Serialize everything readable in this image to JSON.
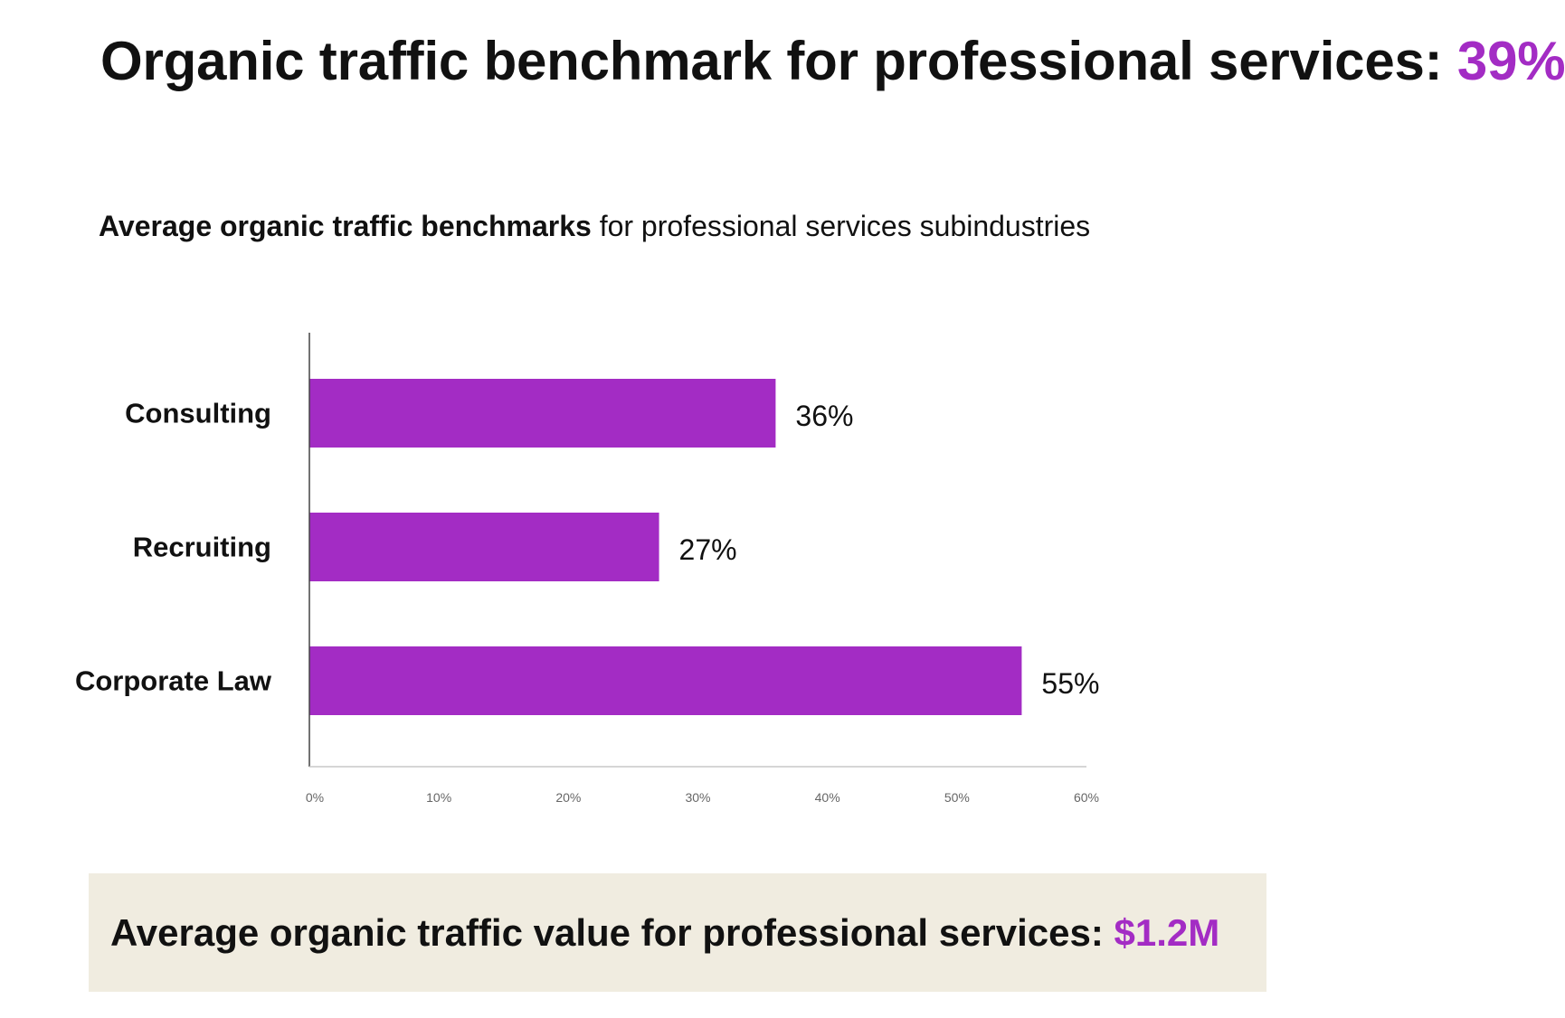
{
  "header": {
    "title_text": "Organic traffic benchmark for professional services: ",
    "title_value": "39%"
  },
  "subtitle": {
    "bold": "Average organic traffic benchmarks",
    "regular": " for professional services subindustries"
  },
  "callout": {
    "text": "Average organic traffic value for professional services: ",
    "value": "$1.2M"
  },
  "colors": {
    "accent": "#a32cc4",
    "bar": "#a32cc4",
    "callout_background": "#f0ece0",
    "text": "#111111",
    "axis_tick_text": "#666666"
  },
  "chart_data": {
    "type": "bar",
    "orientation": "horizontal",
    "categories": [
      "Consulting",
      "Recruiting",
      "Corporate Law"
    ],
    "values": [
      36,
      27,
      55
    ],
    "data_labels": [
      "36%",
      "27%",
      "55%"
    ],
    "xlim": [
      0,
      60
    ],
    "xticks": [
      0,
      10,
      20,
      30,
      40,
      50,
      60
    ],
    "xtick_labels": [
      "0%",
      "10%",
      "20%",
      "30%",
      "40%",
      "50%",
      "60%"
    ],
    "grid": false,
    "legend": "none"
  }
}
